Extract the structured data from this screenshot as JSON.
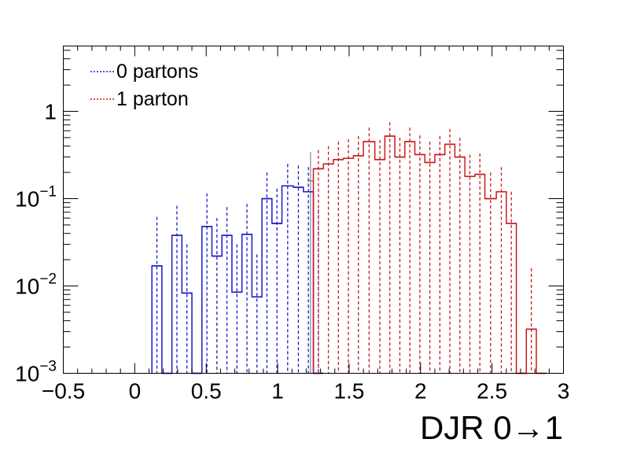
{
  "chart_data": {
    "type": "histogram",
    "xlabel_prefix": "DJR 0",
    "xlabel_arrow": "→",
    "xlabel_suffix": "1",
    "ylabel": "",
    "xlim": [
      -0.5,
      3.0
    ],
    "ylim": [
      0.001,
      5.6
    ],
    "yscale": "log",
    "grid": false,
    "legend_position": "top-left",
    "xtick_values": [
      -0.5,
      0,
      0.5,
      1,
      1.5,
      2,
      2.5,
      3
    ],
    "xtick_labels": [
      "−0.5",
      "0",
      "0.5",
      "1",
      "1.5",
      "2",
      "2.5",
      "3"
    ],
    "ytick_values": [
      0.001,
      0.01,
      0.1,
      1
    ],
    "ytick_labels": [
      {
        "base": "10",
        "exp": "−3"
      },
      {
        "base": "10",
        "exp": "−2"
      },
      {
        "base": "10",
        "exp": "−1"
      },
      {
        "base": "1",
        "exp": ""
      }
    ],
    "total": {
      "name": "",
      "color": "#888888",
      "bins": [
        {
          "x0": 1.21,
          "x1": 1.25,
          "y": 0.16,
          "up": 0.34
        }
      ]
    },
    "series": [
      {
        "name": "0 partons",
        "color": "#1a1acc",
        "bins": [
          {
            "x0": 0.12,
            "x1": 0.19,
            "y": 0.017,
            "up": 0.062
          },
          {
            "x0": 0.19,
            "x1": 0.26,
            "y": 0.001,
            "up": 0.001
          },
          {
            "x0": 0.26,
            "x1": 0.33,
            "y": 0.038,
            "up": 0.083
          },
          {
            "x0": 0.33,
            "x1": 0.4,
            "y": 0.0083,
            "up": 0.03
          },
          {
            "x0": 0.4,
            "x1": 0.47,
            "y": 0.001,
            "up": 0.001
          },
          {
            "x0": 0.47,
            "x1": 0.54,
            "y": 0.048,
            "up": 0.115
          },
          {
            "x0": 0.54,
            "x1": 0.61,
            "y": 0.022,
            "up": 0.06
          },
          {
            "x0": 0.61,
            "x1": 0.68,
            "y": 0.038,
            "up": 0.08
          },
          {
            "x0": 0.68,
            "x1": 0.75,
            "y": 0.0085,
            "up": 0.03
          },
          {
            "x0": 0.75,
            "x1": 0.82,
            "y": 0.039,
            "up": 0.087
          },
          {
            "x0": 0.82,
            "x1": 0.89,
            "y": 0.0075,
            "up": 0.023
          },
          {
            "x0": 0.89,
            "x1": 0.96,
            "y": 0.1,
            "up": 0.2
          },
          {
            "x0": 0.96,
            "x1": 1.03,
            "y": 0.052,
            "up": 0.13
          },
          {
            "x0": 1.03,
            "x1": 1.11,
            "y": 0.14,
            "up": 0.25
          },
          {
            "x0": 1.11,
            "x1": 1.18,
            "y": 0.135,
            "up": 0.24
          },
          {
            "x0": 1.18,
            "x1": 1.25,
            "y": 0.12,
            "up": 0.23
          },
          {
            "x0": 1.25,
            "x1": 1.32,
            "y": 0.001,
            "up": 0.075
          }
        ]
      },
      {
        "name": "1 parton",
        "color": "#cc1a1a",
        "bins": [
          {
            "x0": 1.25,
            "x1": 1.32,
            "y": 0.22,
            "up": 0.36
          },
          {
            "x0": 1.32,
            "x1": 1.39,
            "y": 0.25,
            "up": 0.4
          },
          {
            "x0": 1.39,
            "x1": 1.46,
            "y": 0.28,
            "up": 0.45
          },
          {
            "x0": 1.46,
            "x1": 1.53,
            "y": 0.29,
            "up": 0.48
          },
          {
            "x0": 1.53,
            "x1": 1.6,
            "y": 0.31,
            "up": 0.52
          },
          {
            "x0": 1.6,
            "x1": 1.68,
            "y": 0.45,
            "up": 0.65
          },
          {
            "x0": 1.68,
            "x1": 1.75,
            "y": 0.28,
            "up": 0.47
          },
          {
            "x0": 1.75,
            "x1": 1.82,
            "y": 0.52,
            "up": 0.75
          },
          {
            "x0": 1.82,
            "x1": 1.89,
            "y": 0.3,
            "up": 0.5
          },
          {
            "x0": 1.89,
            "x1": 1.96,
            "y": 0.45,
            "up": 0.65
          },
          {
            "x0": 1.96,
            "x1": 2.03,
            "y": 0.32,
            "up": 0.53
          },
          {
            "x0": 2.03,
            "x1": 2.1,
            "y": 0.26,
            "up": 0.45
          },
          {
            "x0": 2.1,
            "x1": 2.17,
            "y": 0.32,
            "up": 0.52
          },
          {
            "x0": 2.17,
            "x1": 2.24,
            "y": 0.42,
            "up": 0.63
          },
          {
            "x0": 2.24,
            "x1": 2.31,
            "y": 0.3,
            "up": 0.5
          },
          {
            "x0": 2.31,
            "x1": 2.38,
            "y": 0.18,
            "up": 0.32
          },
          {
            "x0": 2.38,
            "x1": 2.45,
            "y": 0.19,
            "up": 0.33
          },
          {
            "x0": 2.45,
            "x1": 2.53,
            "y": 0.1,
            "up": 0.2
          },
          {
            "x0": 2.53,
            "x1": 2.6,
            "y": 0.12,
            "up": 0.23
          },
          {
            "x0": 2.6,
            "x1": 2.67,
            "y": 0.052,
            "up": 0.12
          },
          {
            "x0": 2.67,
            "x1": 2.74,
            "y": 0.001,
            "up": 0.001
          },
          {
            "x0": 2.74,
            "x1": 2.81,
            "y": 0.0032,
            "up": 0.016
          },
          {
            "x0": 2.81,
            "x1": 2.88,
            "y": 0.001,
            "up": 0.001
          }
        ]
      }
    ]
  }
}
